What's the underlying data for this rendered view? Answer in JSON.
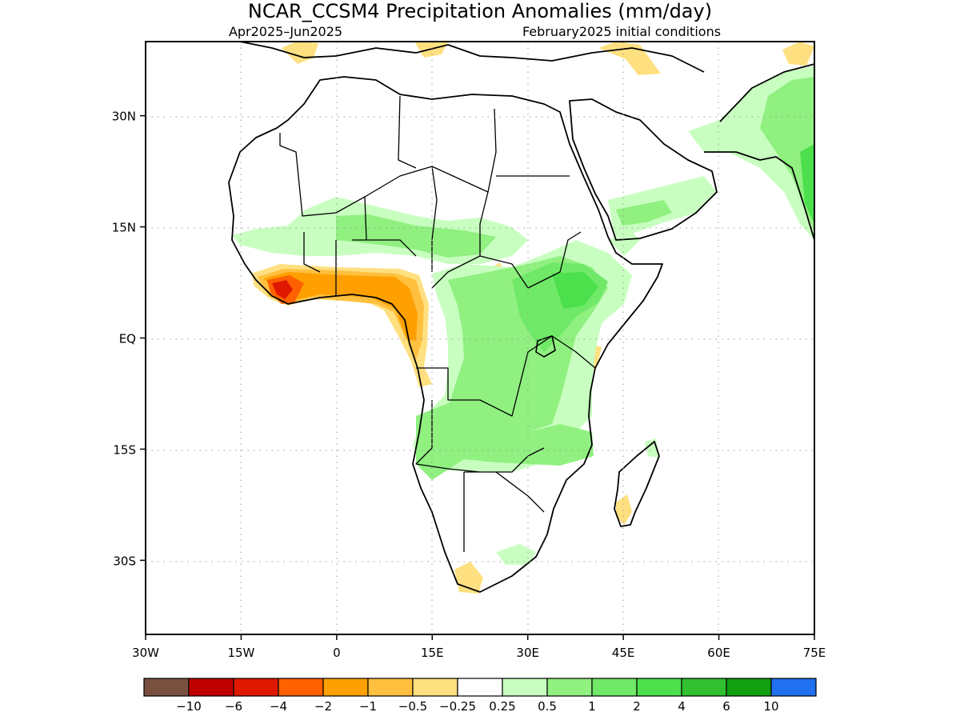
{
  "title": "NCAR_CCSM4 Precipitation Anomalies (mm/day)",
  "subtitle_left": "Apr2025–Jun2025",
  "subtitle_right": "February2025 initial conditions",
  "chart_data": {
    "type": "heatmap",
    "title": "NCAR_CCSM4 Precipitation Anomalies (mm/day)",
    "variable": "Precipitation Anomalies",
    "units": "mm/day",
    "model": "NCAR_CCSM4",
    "period": "Apr2025–Jun2025",
    "initial_conditions": "February2025 initial conditions",
    "lon_range": [
      -30,
      75
    ],
    "lat_range": [
      -40,
      40
    ],
    "grid": true,
    "x_ticks": [
      {
        "value": -30,
        "label": "30W"
      },
      {
        "value": -15,
        "label": "15W"
      },
      {
        "value": 0,
        "label": "0"
      },
      {
        "value": 15,
        "label": "15E"
      },
      {
        "value": 30,
        "label": "30E"
      },
      {
        "value": 45,
        "label": "45E"
      },
      {
        "value": 60,
        "label": "60E"
      },
      {
        "value": 75,
        "label": "75E"
      }
    ],
    "y_ticks": [
      {
        "value": 30,
        "label": "30N"
      },
      {
        "value": 15,
        "label": "15N"
      },
      {
        "value": 0,
        "label": "EQ"
      },
      {
        "value": -15,
        "label": "15S"
      },
      {
        "value": -30,
        "label": "30S"
      }
    ],
    "colorbar": {
      "colors": [
        "#7a5040",
        "#c00000",
        "#e01800",
        "#ff6000",
        "#ffa000",
        "#ffc040",
        "#ffe080",
        "#ffffff",
        "#c8ffc0",
        "#90f080",
        "#70e868",
        "#4ce04c",
        "#30c030",
        "#10a010",
        "#2070f0"
      ],
      "labels": [
        "−10",
        "−6",
        "−4",
        "−2",
        "−1",
        "−0.5",
        "−0.25",
        "0.25",
        "0.5",
        "1",
        "2",
        "4",
        "6",
        "10"
      ]
    }
  }
}
